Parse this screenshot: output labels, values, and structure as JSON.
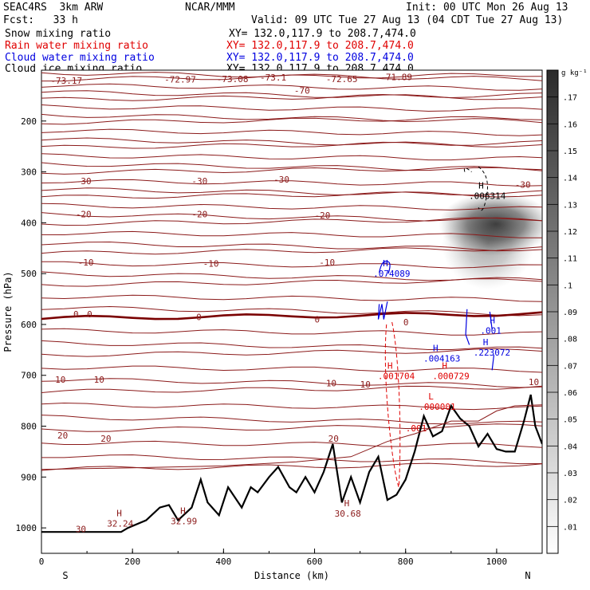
{
  "header": {
    "model": "SEAC4RS  3km ARW",
    "org": "NCAR/MMM",
    "init": "Init: 00 UTC Mon 26 Aug 13",
    "fcst": "Fcst:   33 h",
    "valid": "Valid: 09 UTC Tue 27 Aug 13 (04 CDT Tue 27 Aug 13)",
    "fields": [
      {
        "name": "Snow mixing ratio",
        "xy": "XY= 132.0,117.9 to 208.7,474.0",
        "color": "#000000"
      },
      {
        "name": "Rain water mixing ratio",
        "xy": "XY= 132.0,117.9 to 208.7,474.0",
        "color": "#e00000"
      },
      {
        "name": "Cloud water mixing ratio",
        "xy": "XY= 132.0,117.9 to 208.7,474.0",
        "color": "#0000e0"
      },
      {
        "name": "Cloud ice mixing ratio",
        "xy": "XY= 132.0,117.9 to 208.7,474.0",
        "color": "#000000"
      }
    ]
  },
  "chart_data": {
    "type": "cross-section",
    "xlabel": "Distance (km)",
    "ylabel": "Pressure (hPa)",
    "xlim": [
      0,
      1100
    ],
    "ylim": [
      1050,
      100
    ],
    "x_ticks": [
      0,
      200,
      400,
      600,
      800,
      1000
    ],
    "y_ticks": [
      200,
      300,
      400,
      500,
      600,
      700,
      800,
      900,
      1000
    ],
    "x_end_labels": {
      "left": "S",
      "right": "N"
    },
    "colorbar": {
      "unit": "g kg⁻¹",
      "levels": [
        ".01",
        ".02",
        ".03",
        ".04",
        ".05",
        ".06",
        ".07",
        ".08",
        ".09",
        ".1",
        ".11",
        ".12",
        ".13",
        ".14",
        ".15",
        ".16",
        ".17"
      ]
    },
    "temperature_labels": [
      {
        "text": "-73.17",
        "x": 20,
        "p": 120
      },
      {
        "text": "-72.97",
        "x": 270,
        "p": 118
      },
      {
        "text": "-73.08",
        "x": 385,
        "p": 117
      },
      {
        "text": "-73.1",
        "x": 480,
        "p": 114
      },
      {
        "text": "-72.65",
        "x": 625,
        "p": 117
      },
      {
        "text": "-71.89",
        "x": 745,
        "p": 113
      },
      {
        "text": "-70",
        "x": 555,
        "p": 140
      },
      {
        "text": "-30",
        "x": 75,
        "p": 318
      },
      {
        "text": "-30",
        "x": 330,
        "p": 318
      },
      {
        "text": "-30",
        "x": 510,
        "p": 315
      },
      {
        "text": "-30",
        "x": 1040,
        "p": 325
      },
      {
        "text": "-20",
        "x": 75,
        "p": 383
      },
      {
        "text": "-20",
        "x": 330,
        "p": 383
      },
      {
        "text": "-20",
        "x": 600,
        "p": 385
      },
      {
        "text": "-10",
        "x": 80,
        "p": 478
      },
      {
        "text": "-10",
        "x": 355,
        "p": 480
      },
      {
        "text": "-10",
        "x": 610,
        "p": 478
      },
      {
        "text": "0",
        "x": 70,
        "p": 580
      },
      {
        "text": "0",
        "x": 100,
        "p": 580
      },
      {
        "text": "0",
        "x": 340,
        "p": 585
      },
      {
        "text": "0",
        "x": 600,
        "p": 590
      },
      {
        "text": "0",
        "x": 795,
        "p": 595
      },
      {
        "text": "10",
        "x": 30,
        "p": 708
      },
      {
        "text": "10",
        "x": 115,
        "p": 708
      },
      {
        "text": "10",
        "x": 625,
        "p": 715
      },
      {
        "text": "10",
        "x": 700,
        "p": 718
      },
      {
        "text": "10",
        "x": 1070,
        "p": 713
      },
      {
        "text": "20",
        "x": 35,
        "p": 818
      },
      {
        "text": "20",
        "x": 130,
        "p": 824
      },
      {
        "text": "20",
        "x": 630,
        "p": 824
      },
      {
        "text": "30",
        "x": 75,
        "p": 1002
      }
    ],
    "max_min_labels": [
      {
        "symbol": "H",
        "value": "32.24",
        "x": 165,
        "p": 990,
        "color": "#8b1a1a"
      },
      {
        "symbol": "H",
        "value": "32.99",
        "x": 305,
        "p": 985,
        "color": "#8b1a1a"
      },
      {
        "symbol": "H",
        "value": "30.68",
        "x": 665,
        "p": 970,
        "color": "#8b1a1a"
      },
      {
        "symbol": "H",
        "value": ".006314",
        "x": 960,
        "p": 345,
        "color": "#000000"
      },
      {
        "symbol": "H",
        "value": ".074089",
        "x": 750,
        "p": 498,
        "color": "#0000e0"
      },
      {
        "symbol": "H",
        "value": ".001",
        "x": 985,
        "p": 610,
        "color": "#0000e0"
      },
      {
        "symbol": "H",
        "value": ".223072",
        "x": 970,
        "p": 653,
        "color": "#0000e0"
      },
      {
        "symbol": "H",
        "value": ".004163",
        "x": 860,
        "p": 665,
        "color": "#0000e0"
      },
      {
        "symbol": "H",
        "value": ".001704",
        "x": 760,
        "p": 700,
        "color": "#e00000"
      },
      {
        "symbol": "H",
        "value": ".000729",
        "x": 880,
        "p": 700,
        "color": "#e00000"
      },
      {
        "symbol": "L",
        "value": ".000001",
        "x": 850,
        "p": 760,
        "color": "#e00000"
      }
    ],
    "rain_contour_label": ".001"
  }
}
